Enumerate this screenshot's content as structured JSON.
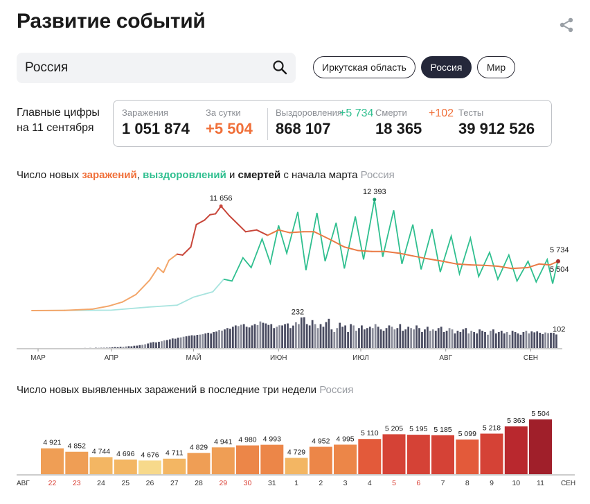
{
  "header": {
    "title": "Развитие событий",
    "share_icon": "share-icon"
  },
  "search": {
    "value": "Россия",
    "icon": "search-icon"
  },
  "region_chips": [
    {
      "label": "Иркутская область",
      "active": false
    },
    {
      "label": "Россия",
      "active": true
    },
    {
      "label": "Мир",
      "active": false
    }
  ],
  "main_figures": {
    "label_line1": "Главные цифры",
    "label_line2": "на 11 сентября",
    "infections": {
      "label": "Заражения",
      "value": "1 051 874"
    },
    "daily": {
      "label": "За сутки",
      "value": "+5 504"
    },
    "recoveries": {
      "label": "Выздоровления",
      "value": "868 107",
      "delta": "+5 734"
    },
    "deaths": {
      "label": "Смерти",
      "value": "18 365",
      "delta": "+102"
    },
    "tests": {
      "label": "Тесты",
      "value": "39 912 526"
    }
  },
  "colors": {
    "infections": "#f0703a",
    "recoveries": "#2fbf8f",
    "deaths": "#2a2d45",
    "accent_dark": "#25283a"
  },
  "chart1_title": {
    "prefix": "Число новых ",
    "infections_word": "заражений",
    "sep": ", ",
    "recoveries_word": "выздоровлений",
    "and": " и ",
    "deaths_word": "смертей",
    "suffix": " с начала марта",
    "region": "Россия"
  },
  "chart2_title": {
    "text": "Число новых выявленных заражений в последние три недели",
    "region": "Россия"
  },
  "chart_data": [
    {
      "type": "line",
      "x_start": "2020-03-03",
      "x_end": "2020-09-11",
      "month_ticks": [
        {
          "label": "МАР",
          "date": "2020-03-03"
        },
        {
          "label": "АПР",
          "date": "2020-04-01"
        },
        {
          "label": "МАЙ",
          "date": "2020-05-01"
        },
        {
          "label": "ИЮН",
          "date": "2020-06-01"
        },
        {
          "label": "ИЮЛ",
          "date": "2020-07-01"
        },
        {
          "label": "АВГ",
          "date": "2020-08-01"
        },
        {
          "label": "СЕН",
          "date": "2020-09-01"
        }
      ],
      "ylim": [
        0,
        13000
      ],
      "series": [
        {
          "name": "Заражения",
          "points": [
            [
              "2020-03-03",
              0
            ],
            [
              "2020-03-15",
              20
            ],
            [
              "2020-03-25",
              160
            ],
            [
              "2020-03-31",
              500
            ],
            [
              "2020-04-05",
              950
            ],
            [
              "2020-04-10",
              1800
            ],
            [
              "2020-04-15",
              3400
            ],
            [
              "2020-04-18",
              4800
            ],
            [
              "2020-04-20",
              4250
            ],
            [
              "2020-04-22",
              5600
            ],
            [
              "2020-04-25",
              6300
            ],
            [
              "2020-04-27",
              6200
            ],
            [
              "2020-04-30",
              7100
            ],
            [
              "2020-05-02",
              9600
            ],
            [
              "2020-05-05",
              10100
            ],
            [
              "2020-05-07",
              10700
            ],
            [
              "2020-05-09",
              10800
            ],
            [
              "2020-05-11",
              11656
            ],
            [
              "2020-05-14",
              10600
            ],
            [
              "2020-05-17",
              9700
            ],
            [
              "2020-05-20",
              8800
            ],
            [
              "2020-05-24",
              9000
            ],
            [
              "2020-05-28",
              8400
            ],
            [
              "2020-06-01",
              9000
            ],
            [
              "2020-06-05",
              8700
            ],
            [
              "2020-06-10",
              8800
            ],
            [
              "2020-06-14",
              8800
            ],
            [
              "2020-06-20",
              7900
            ],
            [
              "2020-06-25",
              7100
            ],
            [
              "2020-06-30",
              6700
            ],
            [
              "2020-07-05",
              6600
            ],
            [
              "2020-07-10",
              6600
            ],
            [
              "2020-07-15",
              6400
            ],
            [
              "2020-07-20",
              6100
            ],
            [
              "2020-07-25",
              5800
            ],
            [
              "2020-07-31",
              5500
            ],
            [
              "2020-08-05",
              5200
            ],
            [
              "2020-08-10",
              5100
            ],
            [
              "2020-08-15",
              5050
            ],
            [
              "2020-08-20",
              4950
            ],
            [
              "2020-08-25",
              4700
            ],
            [
              "2020-08-31",
              4800
            ],
            [
              "2020-09-04",
              5200
            ],
            [
              "2020-09-08",
              5100
            ],
            [
              "2020-09-11",
              5504
            ]
          ]
        },
        {
          "name": "Выздоровления",
          "points": [
            [
              "2020-03-03",
              0
            ],
            [
              "2020-04-01",
              50
            ],
            [
              "2020-04-15",
              400
            ],
            [
              "2020-04-25",
              600
            ],
            [
              "2020-05-01",
              1500
            ],
            [
              "2020-05-08",
              2100
            ],
            [
              "2020-05-12",
              3500
            ],
            [
              "2020-05-15",
              3300
            ],
            [
              "2020-05-19",
              5900
            ],
            [
              "2020-05-22",
              4800
            ],
            [
              "2020-05-26",
              8000
            ],
            [
              "2020-05-29",
              5300
            ],
            [
              "2020-06-01",
              9500
            ],
            [
              "2020-06-04",
              6400
            ],
            [
              "2020-06-08",
              11000
            ],
            [
              "2020-06-11",
              4500
            ],
            [
              "2020-06-15",
              10900
            ],
            [
              "2020-06-18",
              5500
            ],
            [
              "2020-06-22",
              9800
            ],
            [
              "2020-06-25",
              4700
            ],
            [
              "2020-06-29",
              10500
            ],
            [
              "2020-07-02",
              5700
            ],
            [
              "2020-07-06",
              12393
            ],
            [
              "2020-07-09",
              6000
            ],
            [
              "2020-07-13",
              11200
            ],
            [
              "2020-07-16",
              5200
            ],
            [
              "2020-07-20",
              9600
            ],
            [
              "2020-07-23",
              4600
            ],
            [
              "2020-07-27",
              9100
            ],
            [
              "2020-07-30",
              4300
            ],
            [
              "2020-08-03",
              8300
            ],
            [
              "2020-08-06",
              4100
            ],
            [
              "2020-08-10",
              8100
            ],
            [
              "2020-08-13",
              3800
            ],
            [
              "2020-08-17",
              6500
            ],
            [
              "2020-08-20",
              3500
            ],
            [
              "2020-08-24",
              6200
            ],
            [
              "2020-08-27",
              3300
            ],
            [
              "2020-08-31",
              5500
            ],
            [
              "2020-09-03",
              3200
            ],
            [
              "2020-09-07",
              5700
            ],
            [
              "2020-09-09",
              3000
            ],
            [
              "2020-09-11",
              5734
            ]
          ]
        }
      ],
      "annotations": [
        {
          "label": "11 656",
          "date": "2020-05-11",
          "value": 11656
        },
        {
          "label": "12 393",
          "date": "2020-07-06",
          "value": 12393
        },
        {
          "label": "5 734",
          "date": "2020-09-11",
          "value": 5734
        },
        {
          "label": "5 504",
          "date": "2020-09-11",
          "value": 5504
        }
      ]
    },
    {
      "type": "bar",
      "name": "Смерти",
      "x_start": "2020-03-03",
      "x_end": "2020-09-11",
      "ylim": [
        0,
        240
      ],
      "daily_values": [
        0,
        0,
        0,
        0,
        0,
        0,
        0,
        0,
        0,
        0,
        0,
        0,
        0,
        0,
        0,
        0,
        0,
        0,
        0,
        1,
        0,
        1,
        0,
        2,
        1,
        2,
        3,
        4,
        3,
        5,
        7,
        6,
        9,
        8,
        12,
        14,
        13,
        17,
        18,
        22,
        24,
        28,
        34,
        41,
        45,
        42,
        47,
        51,
        57,
        60,
        65,
        72,
        70,
        78,
        80,
        85,
        88,
        92,
        96,
        94,
        99,
        101,
        104,
        110,
        115,
        109,
        120,
        124,
        135,
        131,
        140,
        150,
        145,
        160,
        170,
        165,
        175,
        180,
        160,
        155,
        170,
        180,
        172,
        200,
        190,
        185,
        174,
        180,
        150,
        160,
        171,
        170,
        180,
        185,
        150,
        169,
        194,
        180,
        230,
        232,
        180,
        170,
        210,
        180,
        150,
        180,
        160,
        195,
        220,
        140,
        120,
        150,
        190,
        160,
        170,
        120,
        180,
        170,
        130,
        150,
        170,
        140,
        150,
        160,
        150,
        180,
        160,
        140,
        130,
        150,
        170,
        160,
        140,
        150,
        180,
        130,
        140,
        160,
        150,
        140,
        170,
        150,
        120,
        140,
        160,
        130,
        140,
        130,
        150,
        160,
        120,
        130,
        150,
        140,
        110,
        130,
        120,
        140,
        150,
        110,
        130,
        120,
        110,
        140,
        130,
        120,
        100,
        130,
        140,
        110,
        120,
        130,
        110,
        120,
        100,
        130,
        120,
        110,
        100,
        120,
        130,
        110,
        125,
        118,
        125,
        115,
        105,
        117,
        112,
        115,
        114,
        102
      ],
      "annotations": [
        {
          "label": "232",
          "date": "2020-06-08",
          "value": 232
        },
        {
          "label": "102",
          "date": "2020-09-11",
          "value": 102
        }
      ]
    },
    {
      "type": "bar",
      "name": "Число новых выявленных заражений в последние три недели",
      "categories": [
        "22",
        "23",
        "24",
        "25",
        "26",
        "27",
        "28",
        "29",
        "30",
        "31",
        "1",
        "2",
        "3",
        "4",
        "5",
        "6",
        "7",
        "8",
        "9",
        "10",
        "11"
      ],
      "weekend": [
        true,
        true,
        false,
        false,
        false,
        false,
        false,
        true,
        true,
        false,
        false,
        false,
        false,
        false,
        true,
        true,
        false,
        false,
        false,
        false,
        false
      ],
      "values": [
        4921,
        4852,
        4744,
        4696,
        4676,
        4711,
        4829,
        4941,
        4980,
        4993,
        4729,
        4952,
        4995,
        5110,
        5205,
        5195,
        5185,
        5099,
        5218,
        5363,
        5504
      ],
      "value_labels": [
        "4 921",
        "4 852",
        "4 744",
        "4 696",
        "4 676",
        "4 711",
        "4 829",
        "4 941",
        "4 980",
        "4 993",
        "4 729",
        "4 952",
        "4 995",
        "5 110",
        "5 205",
        "5 195",
        "5 185",
        "5 099",
        "5 218",
        "5 363",
        "5 504"
      ],
      "axis_start_label": "АВГ",
      "axis_end_label": "СЕН",
      "ylim": [
        4400,
        5504
      ]
    }
  ]
}
